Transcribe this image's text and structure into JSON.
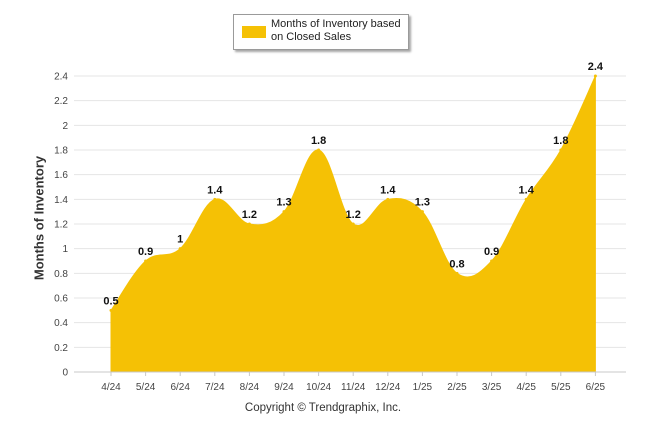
{
  "colors": {
    "series": "#F5C105",
    "grid": "#e4e4e4",
    "text": "#333333"
  },
  "legend": {
    "label": "Months of Inventory based on Closed Sales",
    "position": "top-center"
  },
  "footer": "Copyright © Trendgraphix, Inc.",
  "chart_data": {
    "type": "area",
    "title": "",
    "xlabel": "",
    "ylabel": "Months of Inventory",
    "categories": [
      "4/24",
      "5/24",
      "6/24",
      "7/24",
      "8/24",
      "9/24",
      "10/24",
      "11/24",
      "12/24",
      "1/25",
      "2/25",
      "3/25",
      "4/25",
      "5/25",
      "6/25"
    ],
    "series": [
      {
        "name": "Months of Inventory based on Closed Sales",
        "values": [
          0.5,
          0.9,
          1,
          1.4,
          1.2,
          1.3,
          1.8,
          1.2,
          1.4,
          1.3,
          0.8,
          0.9,
          1.4,
          1.8,
          2.4
        ],
        "data_labels": [
          "0.5",
          "0.9",
          "1",
          "1.4",
          "1.2",
          "1.3",
          "1.8",
          "1.2",
          "1.4",
          "1.3",
          "0.8",
          "0.9",
          "1.4",
          "1.8",
          "2.4"
        ]
      }
    ],
    "ylim": [
      0,
      2.4
    ],
    "yticks": [
      "0",
      "0.2",
      "0.4",
      "0.6",
      "0.8",
      "1",
      "1.2",
      "1.4",
      "1.6",
      "1.8",
      "2",
      "2.2",
      "2.4"
    ],
    "grid": true
  }
}
